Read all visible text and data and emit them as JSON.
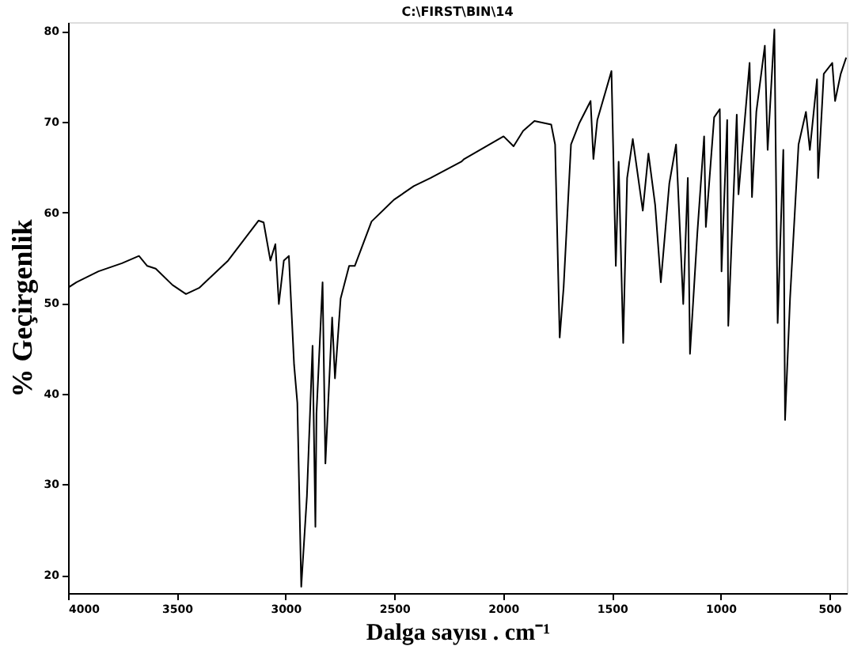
{
  "chart_data": {
    "type": "line",
    "title": "C:\\FIRST\\BIN\\14",
    "xlabel": "Dalga sayısı . cm⁻¹",
    "ylabel": "% Geçirgenlik",
    "xlim": [
      4000,
      420
    ],
    "xticks": [
      4000,
      3500,
      3000,
      2500,
      2000,
      1500,
      1000,
      500
    ],
    "ylim": [
      18,
      81
    ],
    "yticks": [
      20,
      30,
      40,
      50,
      60,
      70,
      80
    ],
    "grid": false,
    "marker": "none",
    "line_style": "solid",
    "series": [
      {
        "color": "#000000",
        "x": [
          4000,
          3961,
          3860,
          3752,
          3674,
          3636,
          3597,
          3520,
          3458,
          3396,
          3264,
          3124,
          3101,
          3070,
          3047,
          3031,
          3008,
          2985,
          2961,
          2946,
          2928,
          2902,
          2876,
          2863,
          2858,
          2830,
          2817,
          2786,
          2773,
          2747,
          2708,
          2682,
          2605,
          2502,
          2411,
          2334,
          2192,
          2179,
          1998,
          1952,
          1908,
          1856,
          1779,
          1761,
          1740,
          1722,
          1688,
          1649,
          1598,
          1585,
          1567,
          1502,
          1482,
          1469,
          1448,
          1430,
          1404,
          1358,
          1332,
          1301,
          1275,
          1236,
          1205,
          1172,
          1151,
          1141,
          1107,
          1076,
          1068,
          1030,
          1004,
          996,
          970,
          965,
          926,
          918,
          867,
          856,
          836,
          797,
          784,
          753,
          738,
          712,
          704,
          681,
          642,
          608,
          590,
          557,
          552,
          526,
          487,
          474,
          448,
          423
        ],
        "values": [
          51.7,
          52.3,
          53.5,
          54.4,
          55.2,
          54.1,
          53.8,
          52,
          51,
          51.7,
          54.7,
          59.1,
          58.9,
          54.7,
          56.5,
          49.9,
          54.7,
          55.2,
          43.2,
          39,
          18.7,
          28.7,
          45.3,
          25.3,
          37.8,
          52.3,
          32.3,
          48.4,
          41.7,
          50.5,
          54.1,
          54.1,
          59,
          61.4,
          62.9,
          63.8,
          65.6,
          65.9,
          68.4,
          67.3,
          69,
          70.1,
          69.7,
          67.5,
          46.2,
          51.7,
          67.5,
          69.9,
          72.3,
          65.9,
          70.2,
          75.6,
          54.1,
          65.6,
          45.6,
          63.8,
          68.1,
          60.2,
          66.5,
          60.8,
          52.3,
          63.2,
          67.5,
          49.9,
          63.8,
          44.4,
          57.8,
          68.4,
          58.4,
          70.5,
          71.4,
          53.5,
          70.2,
          47.5,
          70.8,
          62,
          76.5,
          61.7,
          71.1,
          78.4,
          66.9,
          80.2,
          47.8,
          66.9,
          37.1,
          50.5,
          67.5,
          71.1,
          66.9,
          74.7,
          63.8,
          75.3,
          76.5,
          72.3,
          75.3,
          77.1
        ]
      }
    ]
  }
}
